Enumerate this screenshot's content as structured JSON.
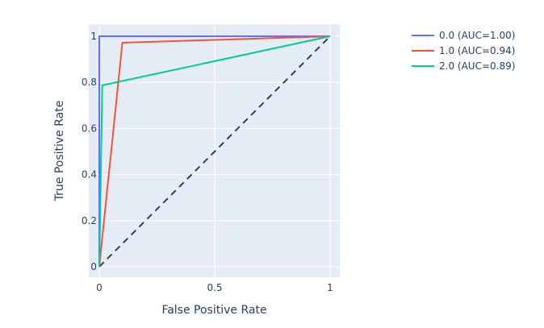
{
  "chart_data": {
    "type": "line",
    "title": "",
    "xlabel": "False Positive Rate",
    "ylabel": "True Positive Rate",
    "xlim": [
      0,
      1
    ],
    "ylim": [
      0,
      1
    ],
    "x_ticks": [
      0,
      0.5,
      1
    ],
    "x_tick_labels": [
      "0",
      "0.5",
      "1"
    ],
    "y_ticks": [
      0,
      0.2,
      0.4,
      0.6,
      0.8,
      1
    ],
    "y_tick_labels": [
      "0",
      "0.2",
      "0.4",
      "0.6",
      "0.8",
      "1"
    ],
    "grid": true,
    "legend_position": "top-right outside",
    "series": [
      {
        "name": "0.0 (AUC=1.00)",
        "color": "#636efa",
        "x": [
          0,
          0,
          1
        ],
        "y": [
          0,
          1,
          1
        ]
      },
      {
        "name": "1.0 (AUC=0.94)",
        "color": "#ef553b",
        "x": [
          0,
          0.1,
          1
        ],
        "y": [
          0,
          0.972,
          1
        ]
      },
      {
        "name": "2.0 (AUC=0.89)",
        "color": "#00cc96",
        "x": [
          0,
          0.013,
          1
        ],
        "y": [
          0,
          0.787,
          1
        ]
      }
    ],
    "reference_line": {
      "color": "#2a3f5f",
      "style": "dashed",
      "x": [
        0,
        1
      ],
      "y": [
        0,
        1
      ]
    }
  },
  "legend": {
    "items": [
      "0.0 (AUC=1.00)",
      "1.0 (AUC=0.94)",
      "2.0 (AUC=0.89)"
    ]
  }
}
